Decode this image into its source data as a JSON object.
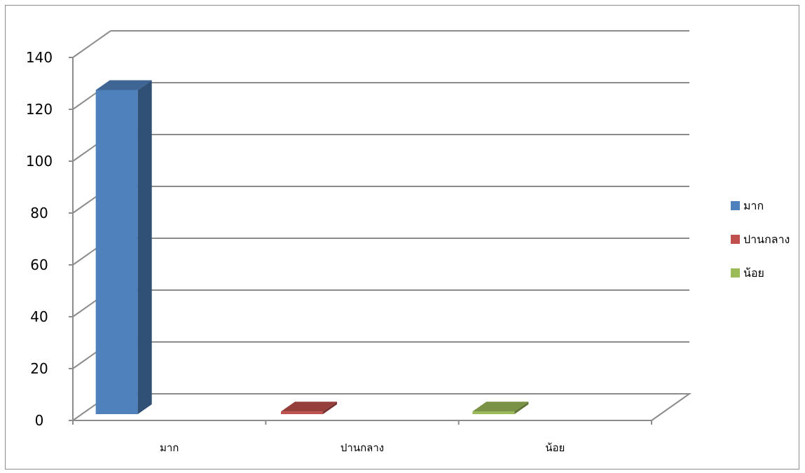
{
  "chart_data": {
    "type": "bar",
    "style": "3d-column",
    "categories": [
      "มาก",
      "ปานกลาง",
      "น้อย"
    ],
    "series": [
      {
        "name": "มาก",
        "values": [
          125,
          0,
          0
        ],
        "color": "#4F81BD"
      },
      {
        "name": "ปานกลาง",
        "values": [
          0,
          1,
          0
        ],
        "color": "#C0504D"
      },
      {
        "name": "น้อย",
        "values": [
          0,
          0,
          1
        ],
        "color": "#9BBB59"
      }
    ],
    "ylim": [
      0,
      140
    ],
    "yticks": [
      "0",
      "20",
      "40",
      "60",
      "80",
      "100",
      "120",
      "140"
    ],
    "grid": true,
    "legend": "right",
    "title": "",
    "xlabel": "",
    "ylabel": ""
  }
}
